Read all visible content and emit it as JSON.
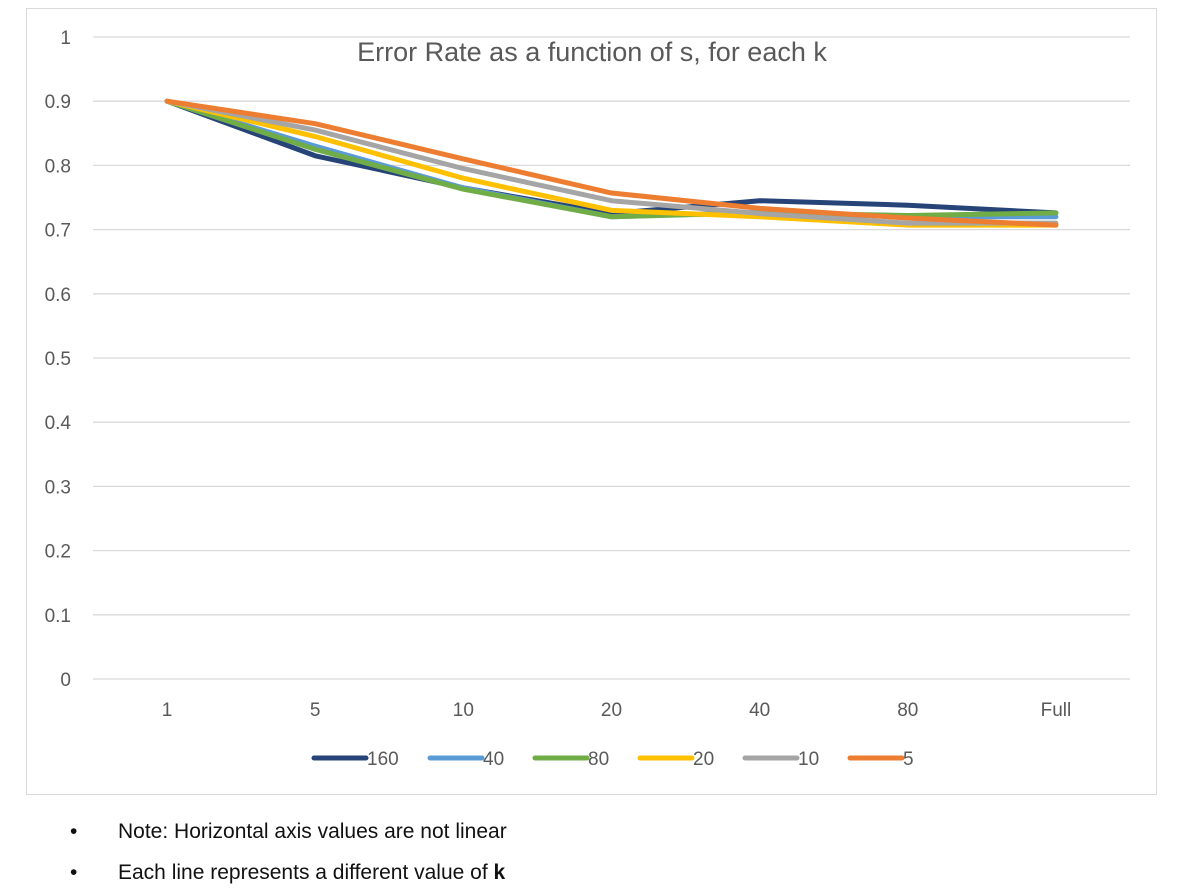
{
  "chart_data": {
    "type": "line",
    "title": "Error Rate as a function of s, for each k",
    "categories": [
      "1",
      "5",
      "10",
      "20",
      "40",
      "80",
      "Full"
    ],
    "ylim": [
      0,
      1
    ],
    "y_ticks": [
      "0",
      "0.1",
      "0.2",
      "0.3",
      "0.4",
      "0.5",
      "0.6",
      "0.7",
      "0.8",
      "0.9",
      "1"
    ],
    "grid": true,
    "legend_position": "bottom",
    "series": [
      {
        "name": "160",
        "color": "#264478",
        "values": [
          0.9,
          0.815,
          0.765,
          0.725,
          0.745,
          0.738,
          0.726
        ]
      },
      {
        "name": "40",
        "color": "#5b9bd5",
        "values": [
          0.9,
          0.83,
          0.765,
          0.72,
          0.727,
          0.72,
          0.72
        ]
      },
      {
        "name": "80",
        "color": "#70ad47",
        "values": [
          0.9,
          0.825,
          0.763,
          0.72,
          0.726,
          0.722,
          0.726
        ]
      },
      {
        "name": "20",
        "color": "#ffc000",
        "values": [
          0.9,
          0.845,
          0.78,
          0.73,
          0.72,
          0.707,
          0.707
        ]
      },
      {
        "name": "10",
        "color": "#a5a5a5",
        "values": [
          0.9,
          0.855,
          0.795,
          0.745,
          0.725,
          0.71,
          0.71
        ]
      },
      {
        "name": "5",
        "color": "#ed7d31",
        "values": [
          0.9,
          0.865,
          0.81,
          0.757,
          0.733,
          0.718,
          0.707
        ]
      }
    ]
  },
  "notes": {
    "bullet": "•",
    "line1": "Note: Horizontal axis values are not linear",
    "line2_prefix": "Each line represents a different value of ",
    "line2_bold": "k"
  }
}
